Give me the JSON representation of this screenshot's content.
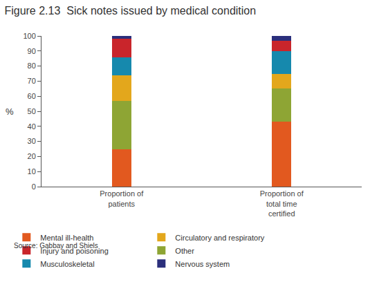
{
  "chart_data": {
    "type": "bar",
    "stacked": true,
    "title": "Figure 2.13  Sick notes issued by medical condition",
    "y_label": "%",
    "source": "Source: Gabbay and Shiels",
    "categories": [
      "Proportion of patients",
      "Proportion of total time certified"
    ],
    "series": [
      {
        "name": "Mental ill-health",
        "color": "#e2591f",
        "values": [
          25,
          43
        ]
      },
      {
        "name": "Other",
        "color": "#8ea534",
        "values": [
          32,
          22
        ]
      },
      {
        "name": "Circulatory and respiratory",
        "color": "#e3a71c",
        "values": [
          17,
          10
        ]
      },
      {
        "name": "Musculoskeletal",
        "color": "#1689ad",
        "values": [
          12,
          15
        ]
      },
      {
        "name": "Injury and poisoning",
        "color": "#c9252b",
        "values": [
          12,
          7
        ]
      },
      {
        "name": "Nervous system",
        "color": "#2b2f7c",
        "values": [
          2,
          3
        ]
      }
    ],
    "ylim": [
      0,
      100
    ],
    "yticks": [
      0,
      10,
      20,
      30,
      40,
      50,
      60,
      70,
      80,
      90,
      100
    ],
    "grid": false,
    "legend": "bottom"
  }
}
